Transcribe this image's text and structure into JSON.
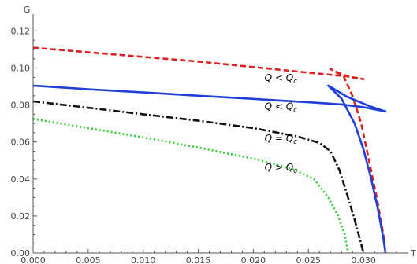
{
  "chart_data": {
    "type": "line",
    "xlabel": "T",
    "ylabel": "G",
    "xlim": [
      0.0,
      0.0335
    ],
    "ylim": [
      0.0,
      0.124
    ],
    "x_ticks": [
      {
        "value": 0.0,
        "label": "0.000"
      },
      {
        "value": 0.005,
        "label": "0.005"
      },
      {
        "value": 0.01,
        "label": "0.010"
      },
      {
        "value": 0.015,
        "label": "0.015"
      },
      {
        "value": 0.02,
        "label": "0.020"
      },
      {
        "value": 0.025,
        "label": "0.025"
      },
      {
        "value": 0.03,
        "label": "0.030"
      }
    ],
    "y_ticks": [
      {
        "value": 0.0,
        "label": "0.00"
      },
      {
        "value": 0.02,
        "label": "0.02"
      },
      {
        "value": 0.04,
        "label": "0.04"
      },
      {
        "value": 0.06,
        "label": "0.06"
      },
      {
        "value": 0.08,
        "label": "0.08"
      },
      {
        "value": 0.1,
        "label": "0.10"
      },
      {
        "value": 0.12,
        "label": "0.12"
      }
    ],
    "grid": false,
    "series": [
      {
        "color": "#e02020",
        "style": "dashed",
        "points": [
          [
            0.0,
            0.111
          ],
          [
            0.005,
            0.1085
          ],
          [
            0.01,
            0.106
          ],
          [
            0.015,
            0.1035
          ],
          [
            0.02,
            0.1005
          ],
          [
            0.025,
            0.0975
          ],
          [
            0.0285,
            0.0955
          ],
          [
            0.03,
            0.094
          ],
          [
            0.0287,
            0.0952
          ],
          [
            0.0275,
            0.098
          ],
          [
            0.027,
            0.0995
          ],
          [
            0.0282,
            0.0955
          ],
          [
            0.029,
            0.085
          ],
          [
            0.0298,
            0.07
          ],
          [
            0.0305,
            0.05
          ],
          [
            0.0312,
            0.03
          ],
          [
            0.0318,
            0.01
          ],
          [
            0.032,
            0.0
          ]
        ]
      },
      {
        "color": "#1f3fd8",
        "style": "solid",
        "points": [
          [
            0.0,
            0.0905
          ],
          [
            0.005,
            0.0885
          ],
          [
            0.01,
            0.0868
          ],
          [
            0.015,
            0.085
          ],
          [
            0.02,
            0.0833
          ],
          [
            0.025,
            0.0815
          ],
          [
            0.028,
            0.0803
          ],
          [
            0.03,
            0.0788
          ],
          [
            0.032,
            0.0765
          ],
          [
            0.0305,
            0.0795
          ],
          [
            0.0285,
            0.0845
          ],
          [
            0.0268,
            0.0905
          ],
          [
            0.028,
            0.0835
          ],
          [
            0.0292,
            0.07
          ],
          [
            0.03,
            0.056
          ],
          [
            0.0307,
            0.04
          ],
          [
            0.0313,
            0.024
          ],
          [
            0.0318,
            0.008
          ],
          [
            0.032,
            0.0
          ]
        ]
      },
      {
        "color": "#111111",
        "style": "dashdot",
        "points": [
          [
            0.0,
            0.082
          ],
          [
            0.005,
            0.0785
          ],
          [
            0.01,
            0.075
          ],
          [
            0.015,
            0.0715
          ],
          [
            0.02,
            0.0675
          ],
          [
            0.024,
            0.063
          ],
          [
            0.026,
            0.0595
          ],
          [
            0.027,
            0.055
          ],
          [
            0.0278,
            0.045
          ],
          [
            0.0285,
            0.032
          ],
          [
            0.0292,
            0.018
          ],
          [
            0.0297,
            0.007
          ],
          [
            0.03,
            0.0
          ]
        ]
      },
      {
        "color": "#33cc33",
        "style": "dotted",
        "points": [
          [
            0.0,
            0.0725
          ],
          [
            0.005,
            0.0675
          ],
          [
            0.01,
            0.0625
          ],
          [
            0.015,
            0.057
          ],
          [
            0.02,
            0.051
          ],
          [
            0.0235,
            0.0455
          ],
          [
            0.0255,
            0.04
          ],
          [
            0.0268,
            0.03
          ],
          [
            0.0277,
            0.02
          ],
          [
            0.0283,
            0.01
          ],
          [
            0.0286,
            0.0
          ]
        ]
      }
    ],
    "annotations": [
      {
        "text": "Q < Q_c",
        "x": 0.0225,
        "y": 0.093
      },
      {
        "text": "Q < Q_c",
        "x": 0.0225,
        "y": 0.0775
      },
      {
        "text": "Q = Q_c",
        "x": 0.0225,
        "y": 0.0603
      },
      {
        "text": "Q > Q_c",
        "x": 0.0225,
        "y": 0.0445
      }
    ]
  }
}
